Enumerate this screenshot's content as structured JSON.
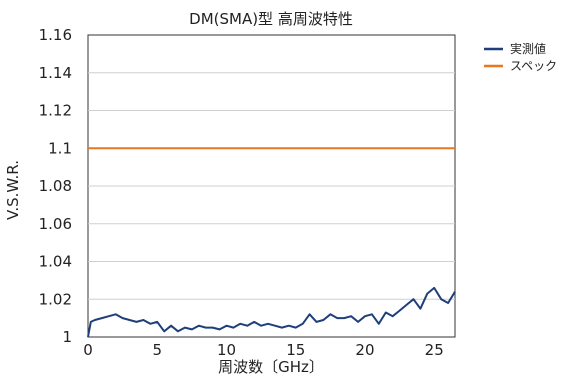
{
  "chart_data": {
    "type": "line",
    "title": "DM(SMA)型 高周波特性",
    "xlabel": "周波数〔GHz〕",
    "ylabel": "V.S.W.R.",
    "xlim": [
      0,
      26.5
    ],
    "ylim": [
      1.0,
      1.16
    ],
    "x_ticks": [
      "0",
      "5",
      "10",
      "15",
      "20",
      "25"
    ],
    "y_ticks": [
      "1",
      "1.02",
      "1.04",
      "1.06",
      "1.08",
      "1.1",
      "1.12",
      "1.14",
      "1.16"
    ],
    "grid": "horizontal",
    "legend_position": "top-right",
    "series": [
      {
        "name": "実測値",
        "color": "#1f3f7a",
        "x": [
          0,
          0.2,
          0.5,
          1,
          1.5,
          2,
          2.5,
          3,
          3.5,
          4,
          4.5,
          5,
          5.5,
          6,
          6.5,
          7,
          7.5,
          8,
          8.5,
          9,
          9.5,
          10,
          10.5,
          11,
          11.5,
          12,
          12.5,
          13,
          13.5,
          14,
          14.5,
          15,
          15.5,
          16,
          16.5,
          17,
          17.5,
          18,
          18.5,
          19,
          19.5,
          20,
          20.5,
          21,
          21.5,
          22,
          22.5,
          23,
          23.5,
          24,
          24.5,
          25,
          25.5,
          26,
          26.5
        ],
        "y": [
          1.0,
          1.008,
          1.009,
          1.01,
          1.011,
          1.012,
          1.01,
          1.009,
          1.008,
          1.009,
          1.007,
          1.008,
          1.003,
          1.006,
          1.003,
          1.005,
          1.004,
          1.006,
          1.005,
          1.005,
          1.004,
          1.006,
          1.005,
          1.007,
          1.006,
          1.008,
          1.006,
          1.007,
          1.006,
          1.005,
          1.006,
          1.005,
          1.007,
          1.012,
          1.008,
          1.009,
          1.012,
          1.01,
          1.01,
          1.011,
          1.008,
          1.011,
          1.012,
          1.007,
          1.013,
          1.011,
          1.014,
          1.017,
          1.02,
          1.015,
          1.023,
          1.026,
          1.02,
          1.018,
          1.024
        ]
      },
      {
        "name": "スペック",
        "color": "#e87722",
        "x": [
          0,
          26.5
        ],
        "y": [
          1.1,
          1.1
        ]
      }
    ]
  }
}
